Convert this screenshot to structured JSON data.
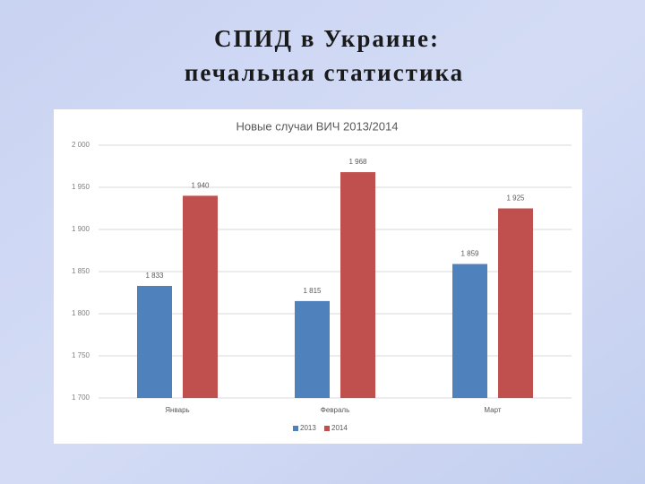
{
  "slide": {
    "title_lines": [
      "СПИД в Украине:",
      "печальная статистика"
    ]
  },
  "chart_data": {
    "type": "bar",
    "title": "Новые случаи ВИЧ 2013/2014",
    "categories": [
      "Январь",
      "Февраль",
      "Март"
    ],
    "series": [
      {
        "name": "2013",
        "color": "#4f81bd",
        "values": [
          1833,
          1815,
          1859
        ],
        "value_labels": [
          "1 833",
          "1 815",
          "1 859"
        ]
      },
      {
        "name": "2014",
        "color": "#c0504d",
        "values": [
          1940,
          1968,
          1925
        ],
        "value_labels": [
          "1 940",
          "1 968",
          "1 925"
        ]
      }
    ],
    "ylim": [
      1700,
      2000
    ],
    "yticks": [
      {
        "value": 1700,
        "label": "1 700"
      },
      {
        "value": 1750,
        "label": "1 750"
      },
      {
        "value": 1800,
        "label": "1 800"
      },
      {
        "value": 1850,
        "label": "1 850"
      },
      {
        "value": 1900,
        "label": "1 900"
      },
      {
        "value": 1950,
        "label": "1 950"
      },
      {
        "value": 2000,
        "label": "2 000"
      }
    ],
    "grid": true,
    "legend": "bottom"
  }
}
